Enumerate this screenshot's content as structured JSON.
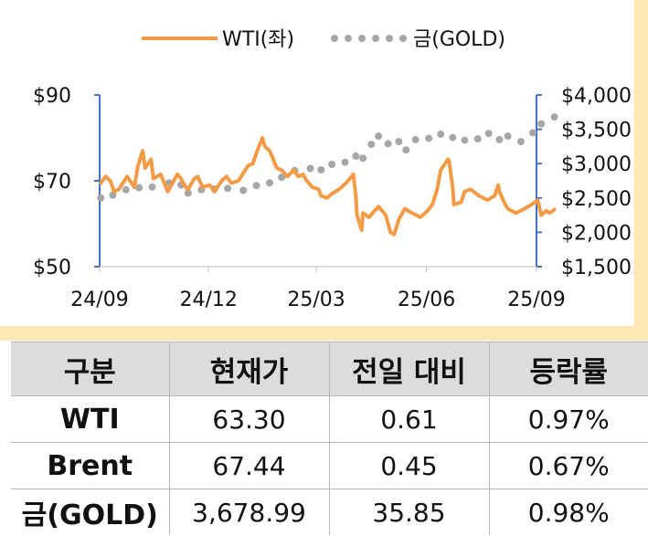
{
  "chart_data": {
    "type": "line",
    "legend_position": "top",
    "x_ticks": [
      "24/09",
      "24/12",
      "25/03",
      "25/06",
      "25/09"
    ],
    "left_axis": {
      "ticks": [
        "$90",
        "$70",
        "$50"
      ],
      "ylim": [
        50,
        90
      ]
    },
    "right_axis": {
      "ticks": [
        "$4,000",
        "$3,500",
        "$3,000",
        "$2,500",
        "$2,000",
        "$1,500"
      ],
      "ylim": [
        1500,
        4000
      ]
    },
    "series": [
      {
        "name": "WTI(좌)",
        "axis": "left",
        "style": "solid",
        "color": "#f39a45",
        "points": [
          [
            "2024-09-02",
            69.5
          ],
          [
            "2024-09-06",
            71.0
          ],
          [
            "2024-09-10",
            70.0
          ],
          [
            "2024-09-13",
            67.5
          ],
          [
            "2024-09-17",
            68.0
          ],
          [
            "2024-09-24",
            71.0
          ],
          [
            "2024-09-30",
            68.5
          ],
          [
            "2024-10-03",
            73.5
          ],
          [
            "2024-10-07",
            77.0
          ],
          [
            "2024-10-09",
            73.0
          ],
          [
            "2024-10-14",
            75.0
          ],
          [
            "2024-10-16",
            70.5
          ],
          [
            "2024-10-22",
            71.5
          ],
          [
            "2024-10-28",
            67.5
          ],
          [
            "2024-11-01",
            69.5
          ],
          [
            "2024-11-05",
            71.5
          ],
          [
            "2024-11-08",
            70.5
          ],
          [
            "2024-11-12",
            68.5
          ],
          [
            "2024-11-14",
            68.0
          ],
          [
            "2024-11-19",
            70.5
          ],
          [
            "2024-11-22",
            71.0
          ],
          [
            "2024-11-26",
            68.5
          ],
          [
            "2024-12-02",
            69.0
          ],
          [
            "2024-12-06",
            67.5
          ],
          [
            "2024-12-12",
            70.0
          ],
          [
            "2024-12-16",
            71.0
          ],
          [
            "2024-12-20",
            69.5
          ],
          [
            "2024-12-26",
            70.0
          ],
          [
            "2025-01-03",
            73.5
          ],
          [
            "2025-01-07",
            74.0
          ],
          [
            "2025-01-10",
            76.5
          ],
          [
            "2025-01-15",
            80.0
          ],
          [
            "2025-01-17",
            78.0
          ],
          [
            "2025-01-21",
            77.0
          ],
          [
            "2025-01-27",
            73.0
          ],
          [
            "2025-01-31",
            72.5
          ],
          [
            "2025-02-05",
            71.0
          ],
          [
            "2025-02-10",
            72.5
          ],
          [
            "2025-02-14",
            71.0
          ],
          [
            "2025-02-18",
            71.5
          ],
          [
            "2025-02-21",
            70.0
          ],
          [
            "2025-02-26",
            68.5
          ],
          [
            "2025-03-03",
            68.0
          ],
          [
            "2025-03-05",
            66.5
          ],
          [
            "2025-03-10",
            66.0
          ],
          [
            "2025-03-14",
            67.0
          ],
          [
            "2025-03-20",
            68.0
          ],
          [
            "2025-03-26",
            69.5
          ],
          [
            "2025-04-01",
            71.5
          ],
          [
            "2025-04-03",
            66.5
          ],
          [
            "2025-04-04",
            62.0
          ],
          [
            "2025-04-08",
            58.5
          ],
          [
            "2025-04-09",
            62.5
          ],
          [
            "2025-04-14",
            61.5
          ],
          [
            "2025-04-22",
            64.0
          ],
          [
            "2025-04-28",
            62.0
          ],
          [
            "2025-05-02",
            58.0
          ],
          [
            "2025-05-05",
            57.5
          ],
          [
            "2025-05-09",
            61.0
          ],
          [
            "2025-05-14",
            63.5
          ],
          [
            "2025-05-20",
            62.5
          ],
          [
            "2025-05-27",
            61.5
          ],
          [
            "2025-06-02",
            63.0
          ],
          [
            "2025-06-06",
            64.5
          ],
          [
            "2025-06-10",
            68.0
          ],
          [
            "2025-06-13",
            72.5
          ],
          [
            "2025-06-19",
            75.0
          ],
          [
            "2025-06-20",
            74.5
          ],
          [
            "2025-06-23",
            68.5
          ],
          [
            "2025-06-24",
            64.5
          ],
          [
            "2025-06-30",
            65.0
          ],
          [
            "2025-07-03",
            67.5
          ],
          [
            "2025-07-08",
            68.0
          ],
          [
            "2025-07-15",
            66.5
          ],
          [
            "2025-07-22",
            65.5
          ],
          [
            "2025-07-28",
            66.5
          ],
          [
            "2025-07-31",
            69.0
          ],
          [
            "2025-08-01",
            67.5
          ],
          [
            "2025-08-05",
            65.0
          ],
          [
            "2025-08-08",
            63.5
          ],
          [
            "2025-08-15",
            62.5
          ],
          [
            "2025-08-22",
            63.5
          ],
          [
            "2025-08-28",
            64.5
          ],
          [
            "2025-09-02",
            65.5
          ],
          [
            "2025-09-05",
            62.0
          ],
          [
            "2025-09-09",
            63.0
          ],
          [
            "2025-09-12",
            62.5
          ],
          [
            "2025-09-16",
            63.3
          ]
        ]
      },
      {
        "name": "금(GOLD)",
        "axis": "right",
        "style": "dotted",
        "color": "#a6a6a6",
        "points": [
          [
            "2024-09-02",
            2500
          ],
          [
            "2024-09-12",
            2540
          ],
          [
            "2024-09-23",
            2620
          ],
          [
            "2024-10-04",
            2650
          ],
          [
            "2024-10-15",
            2660
          ],
          [
            "2024-10-29",
            2720
          ],
          [
            "2024-11-08",
            2690
          ],
          [
            "2024-11-14",
            2570
          ],
          [
            "2024-11-25",
            2620
          ],
          [
            "2024-12-06",
            2630
          ],
          [
            "2024-12-17",
            2640
          ],
          [
            "2024-12-30",
            2610
          ],
          [
            "2025-01-10",
            2680
          ],
          [
            "2025-01-21",
            2720
          ],
          [
            "2025-01-31",
            2800
          ],
          [
            "2025-02-11",
            2900
          ],
          [
            "2025-02-24",
            2930
          ],
          [
            "2025-03-05",
            2910
          ],
          [
            "2025-03-14",
            2990
          ],
          [
            "2025-03-25",
            3020
          ],
          [
            "2025-04-03",
            3110
          ],
          [
            "2025-04-09",
            3080
          ],
          [
            "2025-04-16",
            3280
          ],
          [
            "2025-04-22",
            3400
          ],
          [
            "2025-04-30",
            3290
          ],
          [
            "2025-05-09",
            3320
          ],
          [
            "2025-05-15",
            3200
          ],
          [
            "2025-05-23",
            3350
          ],
          [
            "2025-06-03",
            3370
          ],
          [
            "2025-06-13",
            3430
          ],
          [
            "2025-06-23",
            3380
          ],
          [
            "2025-07-03",
            3340
          ],
          [
            "2025-07-14",
            3360
          ],
          [
            "2025-07-23",
            3440
          ],
          [
            "2025-08-01",
            3350
          ],
          [
            "2025-08-08",
            3400
          ],
          [
            "2025-08-19",
            3320
          ],
          [
            "2025-08-29",
            3450
          ],
          [
            "2025-09-05",
            3580
          ],
          [
            "2025-09-16",
            3680
          ]
        ]
      }
    ]
  },
  "table": {
    "headers": [
      "구분",
      "현재가",
      "전일 대비",
      "등락률"
    ],
    "rows": [
      [
        "WTI",
        "63.30",
        "0.61",
        "0.97%"
      ],
      [
        "Brent",
        "67.44",
        "0.45",
        "0.67%"
      ],
      [
        "금(GOLD)",
        "3,678.99",
        "35.85",
        "0.98%"
      ]
    ]
  }
}
